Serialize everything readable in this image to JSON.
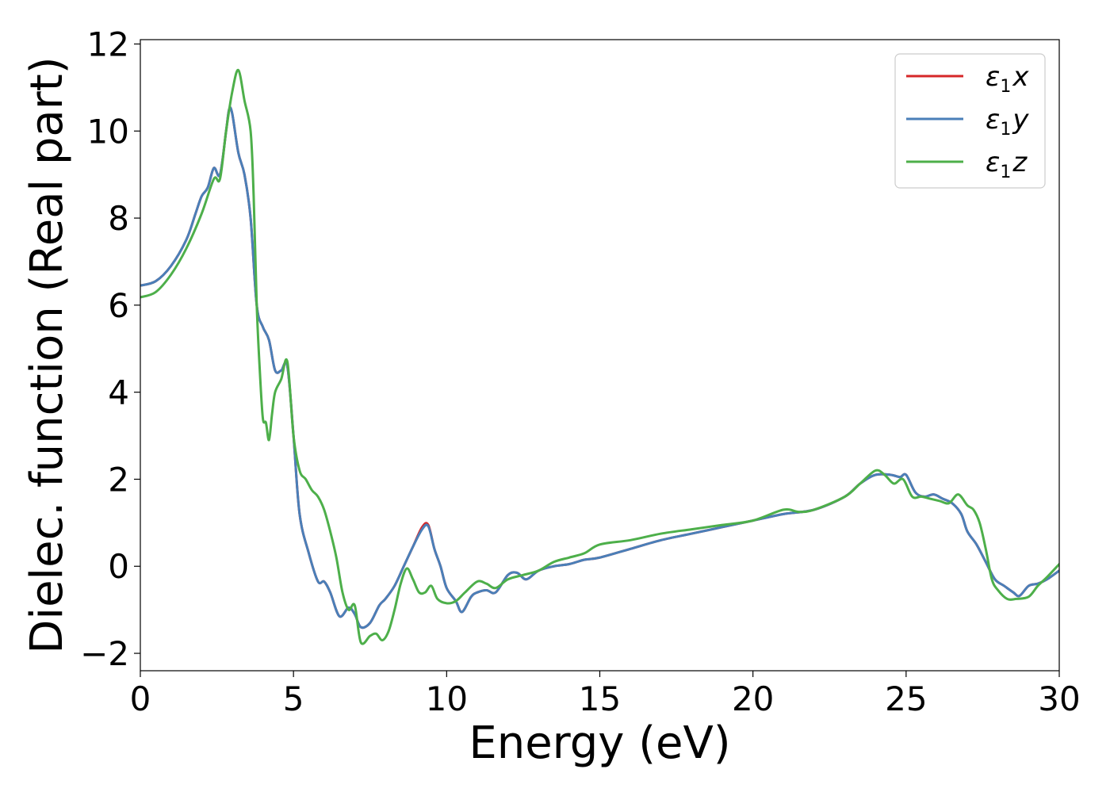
{
  "chart_data": {
    "type": "line",
    "xlabel": "Energy (eV)",
    "ylabel": "Dielec. function (Real part)",
    "xlim": [
      0,
      30
    ],
    "ylim": [
      -2.4,
      12.1
    ],
    "xticks": [
      0,
      5,
      10,
      15,
      20,
      25,
      30
    ],
    "yticks": [
      -2,
      0,
      2,
      4,
      6,
      8,
      10,
      12
    ],
    "xtick_labels": [
      "0",
      "5",
      "10",
      "15",
      "20",
      "25",
      "30"
    ],
    "ytick_labels": [
      "−2",
      "0",
      "2",
      "4",
      "6",
      "8",
      "10",
      "12"
    ],
    "grid": false,
    "legend_position": "top-right",
    "series": [
      {
        "name": "ε",
        "name_sub": "1",
        "name_var": "x",
        "color": "#d62728",
        "x": [
          0,
          0.5,
          1.0,
          1.5,
          1.8,
          2.0,
          2.2,
          2.4,
          2.6,
          2.8,
          2.9,
          3.0,
          3.2,
          3.4,
          3.6,
          3.8,
          4.0,
          4.2,
          4.4,
          4.6,
          4.8,
          5.0,
          5.2,
          5.5,
          5.8,
          6.0,
          6.2,
          6.5,
          6.8,
          7.0,
          7.2,
          7.5,
          7.8,
          8.0,
          8.3,
          8.6,
          8.9,
          9.2,
          9.4,
          9.6,
          9.8,
          10.0,
          10.3,
          10.5,
          10.8,
          11.0,
          11.3,
          11.6,
          12.0,
          12.3,
          12.6,
          13.0,
          13.5,
          14.0,
          14.5,
          15.0,
          16.0,
          17.0,
          18.0,
          19.0,
          20.0,
          21.0,
          22.0,
          23.0,
          23.5,
          24.0,
          24.5,
          24.8,
          25.0,
          25.3,
          25.6,
          25.9,
          26.2,
          26.5,
          26.8,
          27.0,
          27.3,
          27.6,
          27.9,
          28.2,
          28.5,
          28.7,
          29.0,
          29.3,
          29.6,
          30.0
        ],
        "y": [
          6.45,
          6.55,
          6.9,
          7.5,
          8.1,
          8.5,
          8.7,
          9.15,
          9.0,
          10.0,
          10.5,
          10.4,
          9.5,
          9.0,
          8.0,
          6.0,
          5.5,
          5.2,
          4.5,
          4.5,
          4.6,
          3.0,
          1.2,
          0.3,
          -0.35,
          -0.35,
          -0.6,
          -1.15,
          -0.95,
          -1.1,
          -1.4,
          -1.3,
          -0.9,
          -0.75,
          -0.45,
          0.0,
          0.45,
          0.9,
          0.95,
          0.4,
          0.0,
          -0.5,
          -0.8,
          -1.05,
          -0.7,
          -0.6,
          -0.55,
          -0.6,
          -0.2,
          -0.15,
          -0.3,
          -0.1,
          0.0,
          0.05,
          0.15,
          0.2,
          0.4,
          0.6,
          0.75,
          0.9,
          1.05,
          1.2,
          1.3,
          1.6,
          1.9,
          2.1,
          2.1,
          2.05,
          2.1,
          1.7,
          1.6,
          1.65,
          1.55,
          1.45,
          1.2,
          0.8,
          0.5,
          0.1,
          -0.3,
          -0.45,
          -0.6,
          -0.68,
          -0.45,
          -0.4,
          -0.3,
          -0.1
        ]
      },
      {
        "name": "ε",
        "name_sub": "1",
        "name_var": "y",
        "color": "#4a7fb8",
        "x": [
          0,
          0.5,
          1.0,
          1.5,
          1.8,
          2.0,
          2.2,
          2.4,
          2.6,
          2.8,
          2.9,
          3.0,
          3.2,
          3.4,
          3.6,
          3.8,
          4.0,
          4.2,
          4.4,
          4.6,
          4.8,
          5.0,
          5.2,
          5.5,
          5.8,
          6.0,
          6.2,
          6.5,
          6.8,
          7.0,
          7.2,
          7.5,
          7.8,
          8.0,
          8.3,
          8.6,
          8.9,
          9.2,
          9.4,
          9.6,
          9.8,
          10.0,
          10.3,
          10.5,
          10.8,
          11.0,
          11.3,
          11.6,
          12.0,
          12.3,
          12.6,
          13.0,
          13.5,
          14.0,
          14.5,
          15.0,
          16.0,
          17.0,
          18.0,
          19.0,
          20.0,
          21.0,
          22.0,
          23.0,
          23.5,
          24.0,
          24.5,
          24.8,
          25.0,
          25.3,
          25.6,
          25.9,
          26.2,
          26.5,
          26.8,
          27.0,
          27.3,
          27.6,
          27.9,
          28.2,
          28.5,
          28.7,
          29.0,
          29.3,
          29.6,
          30.0
        ],
        "y": [
          6.45,
          6.55,
          6.9,
          7.5,
          8.1,
          8.5,
          8.7,
          9.15,
          9.0,
          10.0,
          10.5,
          10.4,
          9.5,
          9.0,
          8.0,
          6.0,
          5.5,
          5.2,
          4.5,
          4.5,
          4.6,
          3.0,
          1.2,
          0.3,
          -0.35,
          -0.35,
          -0.6,
          -1.15,
          -0.95,
          -1.1,
          -1.4,
          -1.3,
          -0.9,
          -0.75,
          -0.45,
          0.0,
          0.45,
          0.85,
          0.92,
          0.4,
          0.0,
          -0.5,
          -0.8,
          -1.05,
          -0.7,
          -0.6,
          -0.55,
          -0.6,
          -0.2,
          -0.15,
          -0.3,
          -0.1,
          0.0,
          0.05,
          0.15,
          0.2,
          0.4,
          0.6,
          0.75,
          0.9,
          1.05,
          1.2,
          1.3,
          1.6,
          1.9,
          2.1,
          2.1,
          2.05,
          2.1,
          1.7,
          1.6,
          1.65,
          1.55,
          1.45,
          1.2,
          0.8,
          0.5,
          0.1,
          -0.3,
          -0.45,
          -0.6,
          -0.68,
          -0.45,
          -0.4,
          -0.3,
          -0.1
        ]
      },
      {
        "name": "ε",
        "name_sub": "1",
        "name_var": "z",
        "color": "#4daf4a",
        "x": [
          0,
          0.5,
          1.0,
          1.5,
          2.0,
          2.4,
          2.6,
          2.8,
          3.0,
          3.2,
          3.4,
          3.6,
          3.7,
          3.8,
          3.9,
          4.0,
          4.1,
          4.2,
          4.3,
          4.4,
          4.6,
          4.8,
          5.0,
          5.2,
          5.4,
          5.6,
          5.8,
          6.0,
          6.2,
          6.4,
          6.6,
          6.8,
          7.0,
          7.2,
          7.5,
          7.7,
          7.9,
          8.1,
          8.3,
          8.5,
          8.7,
          8.9,
          9.1,
          9.3,
          9.5,
          9.7,
          10.0,
          10.3,
          10.6,
          11.0,
          11.3,
          11.6,
          12.0,
          12.5,
          13.0,
          13.5,
          14.0,
          14.5,
          15.0,
          16.0,
          17.0,
          18.0,
          19.0,
          20.0,
          21.0,
          21.5,
          22.0,
          23.0,
          23.5,
          24.0,
          24.3,
          24.6,
          24.9,
          25.2,
          25.5,
          25.8,
          26.1,
          26.4,
          26.7,
          27.0,
          27.2,
          27.4,
          27.6,
          27.8,
          28.0,
          28.3,
          28.6,
          29.0,
          29.3,
          29.6,
          30.0
        ],
        "y": [
          6.18,
          6.3,
          6.7,
          7.3,
          8.1,
          8.9,
          8.9,
          10.0,
          10.9,
          11.4,
          10.7,
          10.0,
          8.5,
          6.0,
          4.5,
          3.4,
          3.3,
          2.9,
          3.5,
          4.0,
          4.3,
          4.7,
          3.0,
          2.2,
          2.0,
          1.75,
          1.6,
          1.3,
          0.8,
          0.2,
          -0.6,
          -1.0,
          -0.9,
          -1.75,
          -1.6,
          -1.55,
          -1.7,
          -1.5,
          -1.0,
          -0.4,
          -0.05,
          -0.3,
          -0.6,
          -0.6,
          -0.45,
          -0.75,
          -0.85,
          -0.8,
          -0.6,
          -0.35,
          -0.4,
          -0.5,
          -0.3,
          -0.2,
          -0.1,
          0.1,
          0.2,
          0.3,
          0.5,
          0.6,
          0.75,
          0.85,
          0.95,
          1.05,
          1.3,
          1.25,
          1.3,
          1.6,
          1.9,
          2.2,
          2.1,
          1.9,
          2.0,
          1.6,
          1.6,
          1.55,
          1.5,
          1.45,
          1.65,
          1.4,
          1.3,
          1.0,
          0.4,
          -0.3,
          -0.55,
          -0.75,
          -0.75,
          -0.7,
          -0.45,
          -0.25,
          0.05
        ]
      }
    ]
  }
}
